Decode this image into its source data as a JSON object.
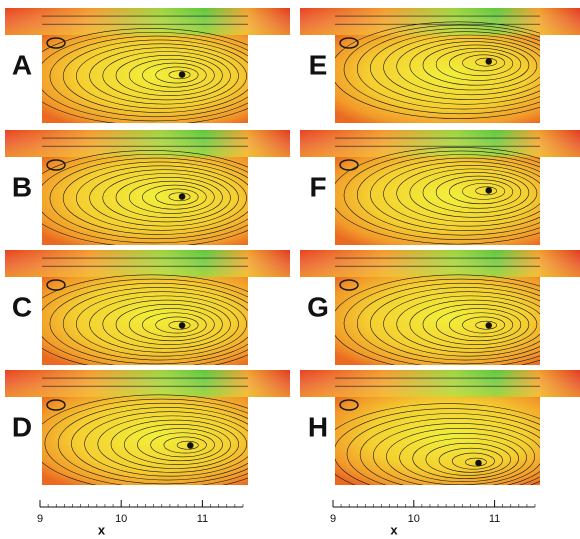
{
  "panels": [
    {
      "label": "A"
    },
    {
      "label": "B"
    },
    {
      "label": "C"
    },
    {
      "label": "D"
    },
    {
      "label": "E"
    },
    {
      "label": "F"
    },
    {
      "label": "G"
    },
    {
      "label": "H"
    }
  ],
  "axes": [
    {
      "label": "x",
      "xlim": [
        9,
        11.5
      ],
      "ticks": [
        9,
        10,
        11
      ]
    },
    {
      "label": "x",
      "xlim": [
        9,
        11.5
      ],
      "ticks": [
        9,
        10,
        11
      ]
    }
  ]
}
